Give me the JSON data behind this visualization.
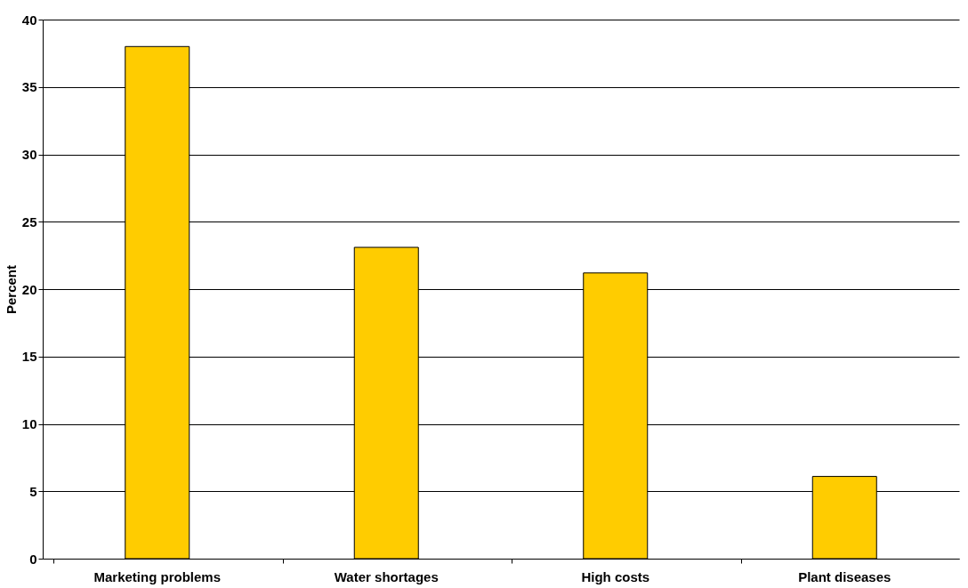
{
  "chart_data": {
    "type": "bar",
    "ylabel": "Percent",
    "categories": [
      "Marketing problems",
      "Water shortages",
      "High costs",
      "Plant diseases"
    ],
    "values": [
      38,
      23.1,
      21.2,
      6.1
    ],
    "color": "#ffcc00",
    "ylim": [
      0,
      40
    ],
    "yticks": [
      0,
      5,
      10,
      15,
      20,
      25,
      30,
      35,
      40
    ],
    "grid": "y"
  }
}
